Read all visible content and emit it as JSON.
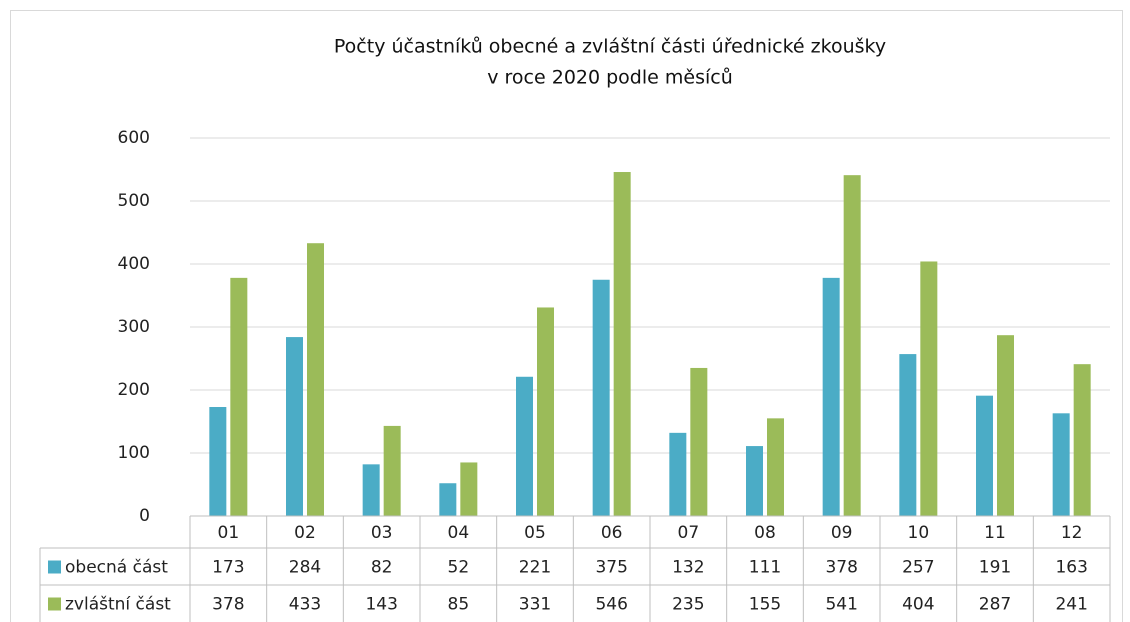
{
  "chart_data": {
    "type": "bar",
    "title": [
      "Počty účastníků obecné a zvláštní části úřednické zkoušky",
      "v roce 2020 podle měsíců"
    ],
    "categories": [
      "01",
      "02",
      "03",
      "04",
      "05",
      "06",
      "07",
      "08",
      "09",
      "10",
      "11",
      "12"
    ],
    "series": [
      {
        "name": "obecná část",
        "color": "#4bacc6",
        "values": [
          173,
          284,
          82,
          52,
          221,
          375,
          132,
          111,
          378,
          257,
          191,
          163
        ]
      },
      {
        "name": "zvláštní část",
        "color": "#9bbb59",
        "values": [
          378,
          433,
          143,
          85,
          331,
          546,
          235,
          155,
          541,
          404,
          287,
          241
        ]
      }
    ],
    "ylim": [
      0,
      600
    ],
    "yticks": [
      0,
      100,
      200,
      300,
      400,
      500,
      600
    ],
    "grid": true,
    "data_table": true
  }
}
